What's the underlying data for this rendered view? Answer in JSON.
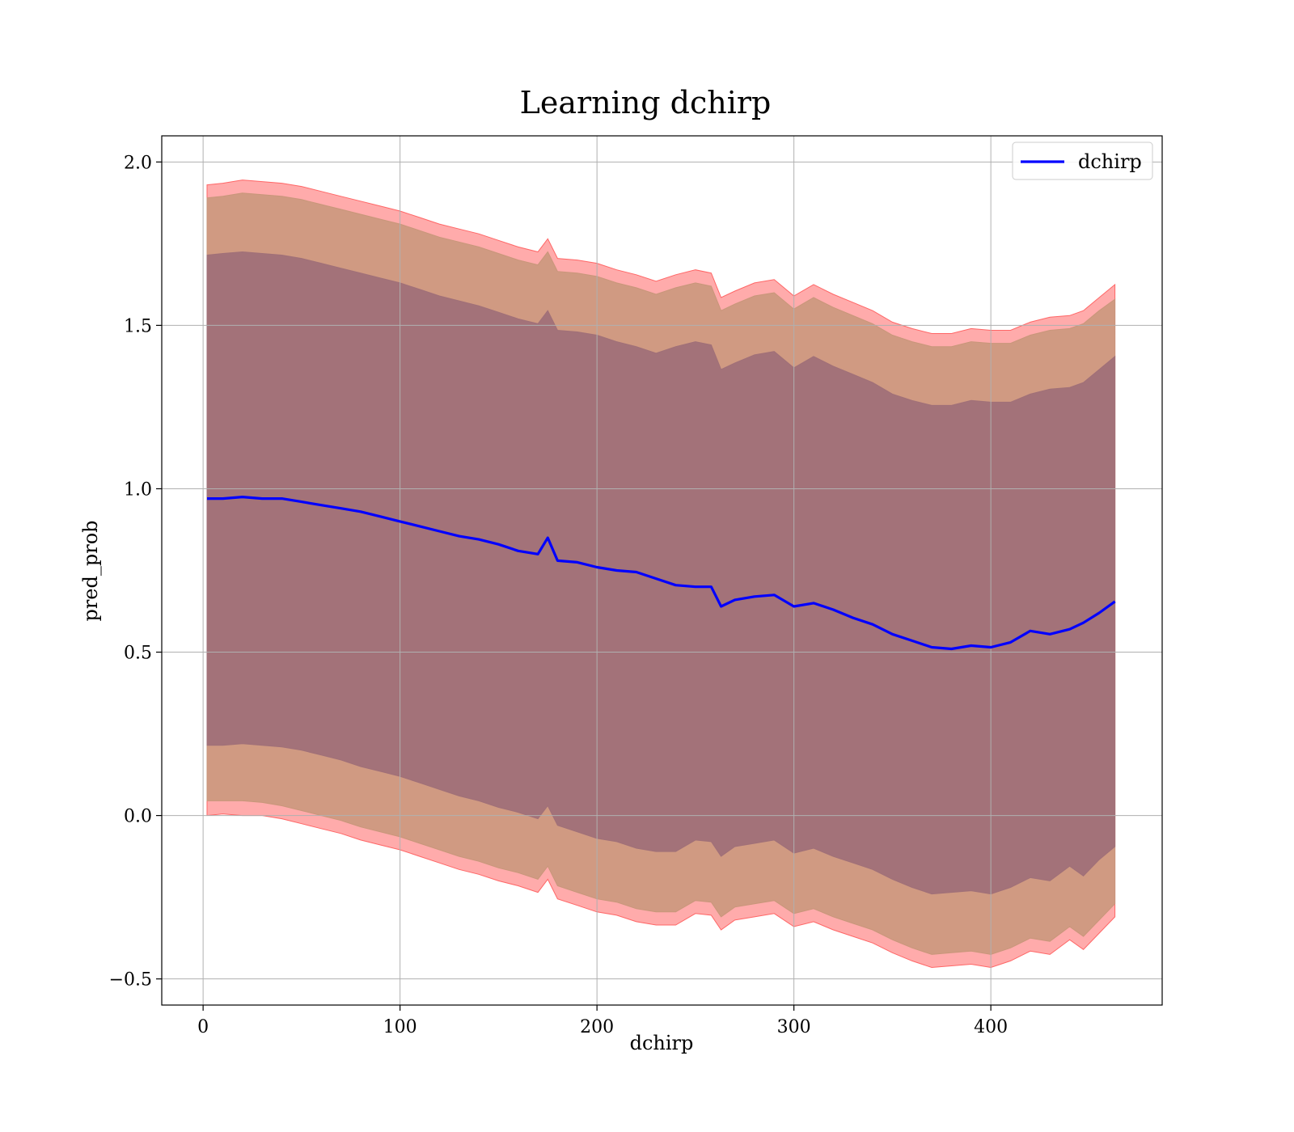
{
  "chart_data": {
    "type": "line",
    "title": "Learning dchirp",
    "xlabel": "dchirp",
    "ylabel": "pred_prob",
    "xlim": [
      -21,
      487
    ],
    "ylim": [
      -0.58,
      2.08
    ],
    "xticks": [
      0,
      100,
      200,
      300,
      400
    ],
    "yticks": [
      -0.5,
      0.0,
      0.5,
      1.0,
      1.5,
      2.0
    ],
    "xtick_labels": [
      "0",
      "100",
      "200",
      "300",
      "400"
    ],
    "ytick_labels": [
      "−0.5",
      "0.0",
      "0.5",
      "1.0",
      "1.5",
      "2.0"
    ],
    "grid": true,
    "legend": {
      "position": "top-right",
      "entries": [
        "dchirp"
      ]
    },
    "colors": {
      "mean_line": "#0000ff",
      "band_outer": "#ff6666",
      "band_middle": "#c8967a",
      "band_inner": "#a07078",
      "grid": "#b0b0b0"
    },
    "series": [
      {
        "name": "dchirp",
        "x": [
          2,
          10,
          20,
          30,
          40,
          50,
          60,
          70,
          80,
          90,
          100,
          110,
          120,
          130,
          140,
          150,
          160,
          170,
          175,
          180,
          190,
          200,
          210,
          220,
          230,
          240,
          250,
          258,
          263,
          270,
          280,
          290,
          300,
          310,
          320,
          330,
          340,
          350,
          360,
          370,
          380,
          390,
          400,
          410,
          420,
          430,
          440,
          447,
          455,
          463
        ],
        "y": [
          0.97,
          0.97,
          0.975,
          0.97,
          0.97,
          0.96,
          0.95,
          0.94,
          0.93,
          0.915,
          0.9,
          0.885,
          0.87,
          0.855,
          0.845,
          0.83,
          0.81,
          0.8,
          0.85,
          0.78,
          0.775,
          0.76,
          0.75,
          0.745,
          0.725,
          0.705,
          0.7,
          0.7,
          0.64,
          0.66,
          0.67,
          0.675,
          0.64,
          0.65,
          0.63,
          0.605,
          0.585,
          0.555,
          0.535,
          0.515,
          0.51,
          0.52,
          0.515,
          0.53,
          0.565,
          0.555,
          0.57,
          0.59,
          0.62,
          0.655
        ]
      }
    ],
    "bands": [
      {
        "name": "outer",
        "upper": [
          1.93,
          1.935,
          1.945,
          1.94,
          1.935,
          1.925,
          1.91,
          1.895,
          1.88,
          1.865,
          1.85,
          1.83,
          1.81,
          1.795,
          1.78,
          1.76,
          1.74,
          1.725,
          1.765,
          1.705,
          1.7,
          1.69,
          1.67,
          1.655,
          1.635,
          1.655,
          1.67,
          1.66,
          1.585,
          1.605,
          1.63,
          1.64,
          1.59,
          1.625,
          1.595,
          1.57,
          1.545,
          1.51,
          1.49,
          1.475,
          1.475,
          1.49,
          1.485,
          1.485,
          1.51,
          1.525,
          1.53,
          1.545,
          1.585,
          1.625
        ],
        "lower": [
          0.0,
          0.005,
          0.0,
          0.0,
          -0.01,
          -0.025,
          -0.04,
          -0.055,
          -0.075,
          -0.09,
          -0.105,
          -0.125,
          -0.145,
          -0.165,
          -0.18,
          -0.2,
          -0.215,
          -0.235,
          -0.195,
          -0.255,
          -0.275,
          -0.295,
          -0.305,
          -0.325,
          -0.335,
          -0.335,
          -0.3,
          -0.305,
          -0.35,
          -0.32,
          -0.31,
          -0.3,
          -0.34,
          -0.325,
          -0.35,
          -0.37,
          -0.39,
          -0.42,
          -0.445,
          -0.465,
          -0.46,
          -0.455,
          -0.465,
          -0.445,
          -0.415,
          -0.425,
          -0.38,
          -0.41,
          -0.36,
          -0.31
        ]
      },
      {
        "name": "middle",
        "upper": [
          1.89,
          1.895,
          1.905,
          1.9,
          1.895,
          1.885,
          1.87,
          1.855,
          1.84,
          1.825,
          1.81,
          1.79,
          1.77,
          1.755,
          1.74,
          1.72,
          1.7,
          1.685,
          1.725,
          1.665,
          1.66,
          1.65,
          1.63,
          1.615,
          1.595,
          1.615,
          1.63,
          1.62,
          1.545,
          1.565,
          1.59,
          1.6,
          1.55,
          1.585,
          1.555,
          1.53,
          1.505,
          1.47,
          1.45,
          1.435,
          1.435,
          1.45,
          1.445,
          1.445,
          1.47,
          1.485,
          1.49,
          1.505,
          1.545,
          1.58
        ],
        "lower": [
          0.045,
          0.045,
          0.045,
          0.04,
          0.03,
          0.015,
          0.0,
          -0.015,
          -0.035,
          -0.05,
          -0.065,
          -0.085,
          -0.105,
          -0.125,
          -0.14,
          -0.16,
          -0.175,
          -0.195,
          -0.155,
          -0.215,
          -0.235,
          -0.255,
          -0.265,
          -0.285,
          -0.295,
          -0.295,
          -0.26,
          -0.265,
          -0.31,
          -0.28,
          -0.27,
          -0.26,
          -0.3,
          -0.285,
          -0.31,
          -0.33,
          -0.35,
          -0.38,
          -0.405,
          -0.425,
          -0.42,
          -0.415,
          -0.425,
          -0.405,
          -0.375,
          -0.385,
          -0.34,
          -0.37,
          -0.32,
          -0.27
        ]
      },
      {
        "name": "inner",
        "upper": [
          1.715,
          1.72,
          1.725,
          1.72,
          1.715,
          1.705,
          1.69,
          1.675,
          1.66,
          1.645,
          1.63,
          1.61,
          1.59,
          1.575,
          1.56,
          1.54,
          1.52,
          1.505,
          1.545,
          1.485,
          1.48,
          1.47,
          1.45,
          1.435,
          1.415,
          1.435,
          1.45,
          1.44,
          1.365,
          1.385,
          1.41,
          1.42,
          1.37,
          1.405,
          1.375,
          1.35,
          1.325,
          1.29,
          1.27,
          1.255,
          1.255,
          1.27,
          1.265,
          1.265,
          1.29,
          1.305,
          1.31,
          1.325,
          1.365,
          1.405
        ],
        "lower": [
          0.215,
          0.215,
          0.22,
          0.215,
          0.21,
          0.2,
          0.185,
          0.17,
          0.15,
          0.135,
          0.12,
          0.1,
          0.08,
          0.06,
          0.045,
          0.025,
          0.01,
          -0.01,
          0.03,
          -0.03,
          -0.05,
          -0.07,
          -0.08,
          -0.1,
          -0.11,
          -0.11,
          -0.075,
          -0.08,
          -0.125,
          -0.095,
          -0.085,
          -0.075,
          -0.115,
          -0.1,
          -0.125,
          -0.145,
          -0.165,
          -0.195,
          -0.22,
          -0.24,
          -0.235,
          -0.23,
          -0.24,
          -0.22,
          -0.19,
          -0.2,
          -0.155,
          -0.185,
          -0.135,
          -0.095
        ]
      }
    ]
  }
}
